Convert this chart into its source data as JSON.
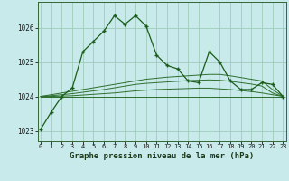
{
  "title": "Graphe pression niveau de la mer (hPa)",
  "background_color": "#c8eaea",
  "grid_color": "#a0ccbb",
  "line_color_main": "#1a5c1a",
  "line_color_flat": "#2d6e2d",
  "x_labels": [
    "0",
    "1",
    "2",
    "3",
    "4",
    "5",
    "6",
    "7",
    "8",
    "9",
    "10",
    "11",
    "12",
    "13",
    "14",
    "15",
    "16",
    "17",
    "18",
    "19",
    "20",
    "21",
    "22",
    "23"
  ],
  "ylim": [
    1022.7,
    1026.75
  ],
  "yticks": [
    1023,
    1024,
    1025,
    1026
  ],
  "series_main": [
    1023.05,
    1023.55,
    1024.0,
    1024.25,
    1025.3,
    1025.6,
    1025.9,
    1026.35,
    1026.1,
    1026.35,
    1026.05,
    1025.2,
    1024.9,
    1024.8,
    1024.45,
    1024.4,
    1025.3,
    1025.0,
    1024.45,
    1024.2,
    1024.2,
    1024.4,
    1024.35,
    1024.0
  ],
  "series_flat1": [
    1024.0,
    1024.05,
    1024.1,
    1024.15,
    1024.2,
    1024.25,
    1024.3,
    1024.35,
    1024.4,
    1024.45,
    1024.5,
    1024.53,
    1024.56,
    1024.58,
    1024.6,
    1024.62,
    1024.64,
    1024.64,
    1024.6,
    1024.55,
    1024.5,
    1024.45,
    1024.2,
    1024.0
  ],
  "series_flat2": [
    1024.0,
    1024.02,
    1024.05,
    1024.08,
    1024.12,
    1024.16,
    1024.2,
    1024.25,
    1024.3,
    1024.35,
    1024.38,
    1024.4,
    1024.42,
    1024.44,
    1024.46,
    1024.47,
    1024.48,
    1024.47,
    1024.44,
    1024.4,
    1024.36,
    1024.3,
    1024.1,
    1024.0
  ],
  "series_flat3": [
    1024.0,
    1024.0,
    1024.01,
    1024.02,
    1024.04,
    1024.06,
    1024.08,
    1024.1,
    1024.13,
    1024.16,
    1024.18,
    1024.2,
    1024.21,
    1024.22,
    1024.23,
    1024.24,
    1024.24,
    1024.22,
    1024.2,
    1024.17,
    1024.14,
    1024.1,
    1024.05,
    1024.0
  ],
  "series_base": [
    1024.0,
    1024.0,
    1024.0,
    1024.0,
    1024.0,
    1024.0,
    1024.0,
    1024.0,
    1024.0,
    1024.0,
    1024.0,
    1024.0,
    1024.0,
    1024.0,
    1024.0,
    1024.0,
    1024.0,
    1024.0,
    1024.0,
    1024.0,
    1024.0,
    1024.0,
    1024.0,
    1024.0
  ]
}
